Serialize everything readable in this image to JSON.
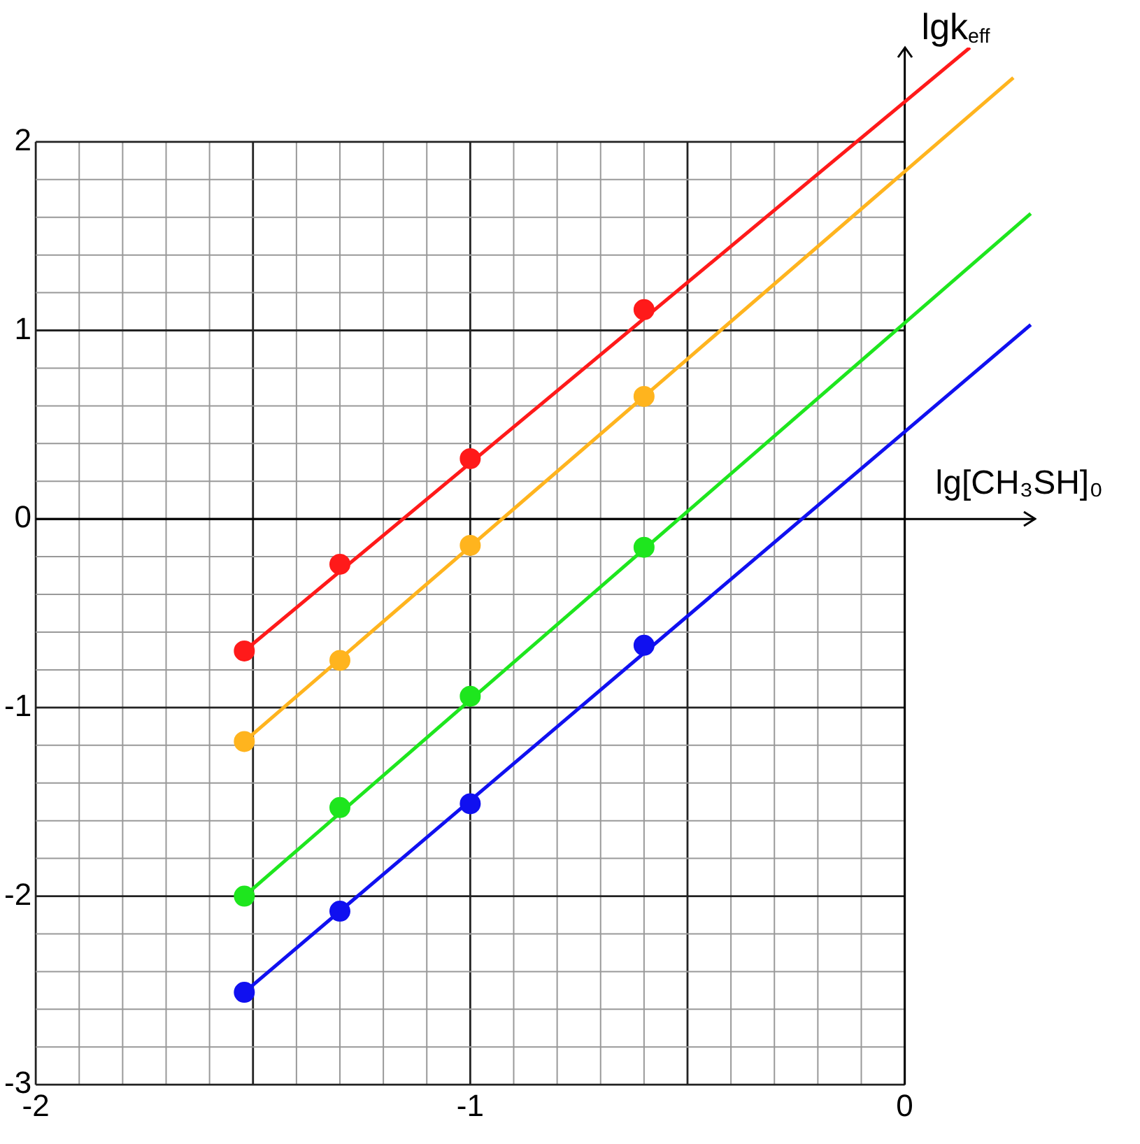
{
  "chart_data": {
    "type": "scatter",
    "xlabel": "lg[CH₃SH]₀",
    "ylabel": "lgk$_{eff}$",
    "xlim": [
      -2,
      0.3
    ],
    "ylim": [
      -3,
      2.5
    ],
    "xticks": [
      -2,
      {
        "value": -1.9,
        "label": null
      },
      {
        "value": -1.8,
        "label": null
      },
      {
        "value": -1.7,
        "label": null
      },
      {
        "value": -1.6,
        "label": null
      },
      {
        "value": -1.5,
        "label": null
      },
      {
        "value": -1.4,
        "label": null
      },
      {
        "value": -1.3,
        "label": null
      },
      {
        "value": -1.2,
        "label": null
      },
      {
        "value": -1.1,
        "label": null
      },
      -1,
      {
        "value": -0.9,
        "label": null
      },
      {
        "value": -0.8,
        "label": null
      },
      {
        "value": -0.7,
        "label": null
      },
      {
        "value": -0.6,
        "label": null
      },
      {
        "value": -0.5,
        "label": null
      },
      {
        "value": -0.4,
        "label": null
      },
      {
        "value": -0.3,
        "label": null
      },
      {
        "value": -0.2,
        "label": null
      },
      {
        "value": -0.1,
        "label": null
      },
      0
    ],
    "yticks": [
      -3,
      {
        "value": -2.8,
        "label": null
      },
      {
        "value": -2.6,
        "label": null
      },
      {
        "value": -2.4,
        "label": null
      },
      {
        "value": -2.2,
        "label": null
      },
      -2,
      {
        "value": -1.8,
        "label": null
      },
      {
        "value": -1.6,
        "label": null
      },
      {
        "value": -1.4,
        "label": null
      },
      {
        "value": -1.2,
        "label": null
      },
      -1,
      {
        "value": -0.8,
        "label": null
      },
      {
        "value": -0.6,
        "label": null
      },
      {
        "value": -0.4,
        "label": null
      },
      {
        "value": -0.2,
        "label": null
      },
      0,
      {
        "value": 0.2,
        "label": null
      },
      {
        "value": 0.4,
        "label": null
      },
      {
        "value": 0.6,
        "label": null
      },
      {
        "value": 0.8,
        "label": null
      },
      1,
      {
        "value": 1.2,
        "label": null
      },
      {
        "value": 1.4,
        "label": null
      },
      {
        "value": 1.6,
        "label": null
      },
      {
        "value": 1.8,
        "label": null
      },
      2
    ],
    "grid": true,
    "legend": false,
    "marker": "circle",
    "x": [
      -1.52,
      -1.3,
      -1.0,
      -0.6
    ],
    "series": [
      {
        "color": "#ff1a1a",
        "values": [
          -0.7,
          -0.24,
          0.32,
          1.11
        ]
      },
      {
        "color": "#ffb41e",
        "values": [
          -1.18,
          -0.75,
          -0.14,
          0.65
        ]
      },
      {
        "color": "#1ee61e",
        "values": [
          -2.0,
          -1.53,
          -0.94,
          -0.15
        ]
      },
      {
        "color": "#1010f0",
        "values": [
          -2.51,
          -2.08,
          -1.51,
          -0.67
        ]
      },
      {
        "type": "line",
        "marker": "none",
        "color": "#ff1a1a",
        "x": [
          -1.52,
          0.15
        ],
        "values": [
          -0.7,
          2.5
        ]
      },
      {
        "type": "line",
        "marker": "none",
        "color": "#ffb41e",
        "x": [
          -1.52,
          0.25
        ],
        "values": [
          -1.18,
          2.34
        ]
      },
      {
        "type": "line",
        "marker": "none",
        "color": "#1ee61e",
        "x": [
          -1.52,
          0.29
        ],
        "values": [
          -2.0,
          1.62
        ]
      },
      {
        "type": "line",
        "marker": "none",
        "color": "#1010f0",
        "x": [
          -1.52,
          0.29
        ],
        "values": [
          -2.51,
          1.03
        ]
      }
    ]
  }
}
